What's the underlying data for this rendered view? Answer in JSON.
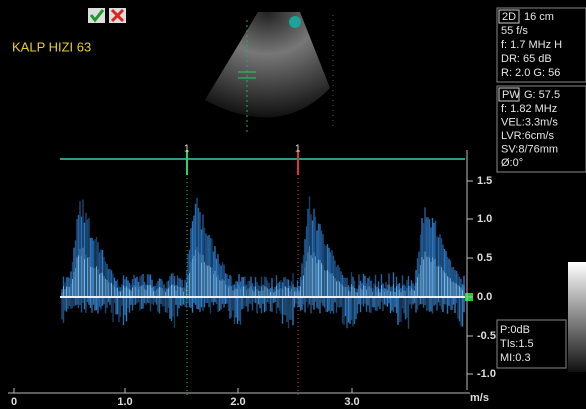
{
  "heart_rate": "KALP HIZI 63",
  "markers": [
    "1",
    "1"
  ],
  "panel_2d": {
    "mode": "2D",
    "depth": "16 cm",
    "lines": [
      "55 f/s",
      "f: 1.7 MHz H",
      "DR: 65 dB",
      "R: 2.0   G: 56"
    ]
  },
  "panel_pw": {
    "mode": "PW",
    "gain": "G: 57.5",
    "lines": [
      "f: 1.82 MHz",
      "VEL:3.3m/s",
      "LVR:6cm/s",
      "SV:8/76mm",
      "Ø:0°"
    ]
  },
  "panel_output": {
    "lines": [
      "P:0dB",
      "TIs:1.5",
      "MI:0.3"
    ]
  },
  "velocity_scale": {
    "labels": [
      "1.5",
      "1.0",
      "0.5",
      "0.0",
      "-0.5",
      "-1.0"
    ],
    "unit": "m/s"
  },
  "time_scale": {
    "labels": [
      "0",
      "1.0",
      "2.0",
      "3.0"
    ]
  }
}
